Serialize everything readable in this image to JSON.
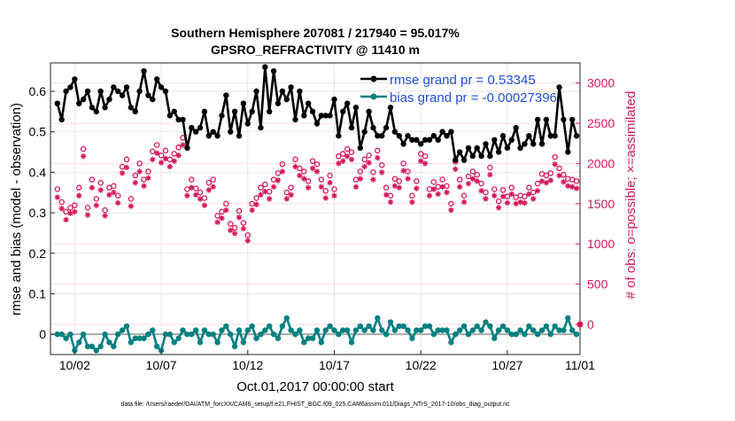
{
  "chart_data": {
    "type": "line",
    "title": "Southern Hemisphere 207081 / 217940 = 95.017%",
    "subtitle": "GPSRO_REFRACTIVITY @ 11410 m",
    "xlabel": "Oct.01,2017 00:00:00 start",
    "ylabel_left": "rmse and bias (model - observation)",
    "ylabel_right": "# of obs: o=possible; ×=assimilated",
    "footer": "data file: /Users/raeder/DAI/ATM_forcXX/CAM6_setup/f.e21.FHIST_BGC.f09_025.CAM6assim.011/Diags_NTrS_2017-10/obs_diag_output.nc",
    "xlim": [
      0.6,
      31.2
    ],
    "ylim_left": [
      -0.05,
      0.67
    ],
    "ylim_right": [
      -375,
      3250
    ],
    "x_ticks": [
      {
        "label": "10/02",
        "value": 2
      },
      {
        "label": "10/07",
        "value": 7
      },
      {
        "label": "10/12",
        "value": 12
      },
      {
        "label": "10/17",
        "value": 17
      },
      {
        "label": "10/22",
        "value": 22
      },
      {
        "label": "10/27",
        "value": 27
      },
      {
        "label": "11/01",
        "value": 32
      }
    ],
    "y_ticks_left": [
      0,
      0.1,
      0.2,
      0.3,
      0.4,
      0.5,
      0.6
    ],
    "y_tick_labels_left": [
      "0",
      "0.1",
      "0.2",
      "0.3",
      "0.4",
      "0.5",
      "0.6"
    ],
    "y_ticks_right": [
      0,
      500,
      1000,
      1500,
      2000,
      2500,
      3000
    ],
    "y_tick_labels_right": [
      "0",
      "500",
      "1000",
      "1500",
      "2000",
      "2500",
      "3000"
    ],
    "grid": true,
    "legend_position": "top-right",
    "colors": {
      "rmse": "#000000",
      "bias": "#008080",
      "obs": "#d6175a",
      "legend_text": "#1f4fe0",
      "zero_line": "#aaaaaa"
    },
    "series": [
      {
        "name": "rmse grand pr = 0.53345",
        "axis": "left",
        "x": [
          1.0,
          1.25,
          1.5,
          1.75,
          2.0,
          2.25,
          2.5,
          2.75,
          3.0,
          3.25,
          3.5,
          3.75,
          4.0,
          4.25,
          4.5,
          4.75,
          5.0,
          5.25,
          5.5,
          5.75,
          6.0,
          6.25,
          6.5,
          6.75,
          7.0,
          7.25,
          7.5,
          7.75,
          8.0,
          8.25,
          8.5,
          8.75,
          9.0,
          9.25,
          9.5,
          9.75,
          10.0,
          10.25,
          10.5,
          10.75,
          11.0,
          11.25,
          11.5,
          11.75,
          12.0,
          12.25,
          12.5,
          12.75,
          13.0,
          13.25,
          13.5,
          13.75,
          14.0,
          14.25,
          14.5,
          14.75,
          15.0,
          15.25,
          15.5,
          15.75,
          16.0,
          16.25,
          16.5,
          16.75,
          17.0,
          17.25,
          17.5,
          17.75,
          18.0,
          18.25,
          18.5,
          18.75,
          19.0,
          19.25,
          19.5,
          19.75,
          20.0,
          20.25,
          20.5,
          20.75,
          21.0,
          21.25,
          21.5,
          21.75,
          22.0,
          22.25,
          22.5,
          22.75,
          23.0,
          23.25,
          23.5,
          23.75,
          24.0,
          24.25,
          24.5,
          24.75,
          25.0,
          25.25,
          25.5,
          25.75,
          26.0,
          26.25,
          26.5,
          26.75,
          27.0,
          27.25,
          27.5,
          27.75,
          28.0,
          28.25,
          28.5,
          28.75,
          29.0,
          29.25,
          29.5,
          29.75,
          30.0,
          30.25,
          30.5,
          30.75,
          31.0
        ],
        "y": [
          0.57,
          0.53,
          0.6,
          0.61,
          0.63,
          0.57,
          0.58,
          0.6,
          0.56,
          0.55,
          0.6,
          0.56,
          0.58,
          0.61,
          0.6,
          0.59,
          0.61,
          0.56,
          0.55,
          0.6,
          0.65,
          0.59,
          0.58,
          0.63,
          0.61,
          0.6,
          0.54,
          0.55,
          0.53,
          0.53,
          0.46,
          0.51,
          0.5,
          0.51,
          0.55,
          0.49,
          0.5,
          0.49,
          0.54,
          0.59,
          0.5,
          0.55,
          0.49,
          0.57,
          0.52,
          0.55,
          0.6,
          0.51,
          0.66,
          0.55,
          0.65,
          0.57,
          0.6,
          0.58,
          0.61,
          0.53,
          0.6,
          0.54,
          0.57,
          0.55,
          0.52,
          0.54,
          0.54,
          0.54,
          0.58,
          0.49,
          0.55,
          0.57,
          0.51,
          0.56,
          0.46,
          0.5,
          0.55,
          0.51,
          0.49,
          0.49,
          0.51,
          0.56,
          0.5,
          0.49,
          0.47,
          0.49,
          0.48,
          0.48,
          0.47,
          0.48,
          0.48,
          0.49,
          0.48,
          0.5,
          0.49,
          0.5,
          0.43,
          0.45,
          0.43,
          0.46,
          0.44,
          0.46,
          0.44,
          0.47,
          0.44,
          0.48,
          0.45,
          0.49,
          0.46,
          0.48,
          0.51,
          0.46,
          0.47,
          0.49,
          0.47,
          0.53,
          0.47,
          0.53,
          0.49,
          0.49,
          0.61,
          0.53,
          0.45,
          0.53,
          0.49
        ]
      },
      {
        "name": "bias grand pr = -0.00027396",
        "axis": "left",
        "x": [
          1.0,
          1.25,
          1.5,
          1.75,
          2.0,
          2.25,
          2.5,
          2.75,
          3.0,
          3.25,
          3.5,
          3.75,
          4.0,
          4.25,
          4.5,
          4.75,
          5.0,
          5.25,
          5.5,
          5.75,
          6.0,
          6.25,
          6.5,
          6.75,
          7.0,
          7.25,
          7.5,
          7.75,
          8.0,
          8.25,
          8.5,
          8.75,
          9.0,
          9.25,
          9.5,
          9.75,
          10.0,
          10.25,
          10.5,
          10.75,
          11.0,
          11.25,
          11.5,
          11.75,
          12.0,
          12.25,
          12.5,
          12.75,
          13.0,
          13.25,
          13.5,
          13.75,
          14.0,
          14.25,
          14.5,
          14.75,
          15.0,
          15.25,
          15.5,
          15.75,
          16.0,
          16.25,
          16.5,
          16.75,
          17.0,
          17.25,
          17.5,
          17.75,
          18.0,
          18.25,
          18.5,
          18.75,
          19.0,
          19.25,
          19.5,
          19.75,
          20.0,
          20.25,
          20.5,
          20.75,
          21.0,
          21.25,
          21.5,
          21.75,
          22.0,
          22.25,
          22.5,
          22.75,
          23.0,
          23.25,
          23.5,
          23.75,
          24.0,
          24.25,
          24.5,
          24.75,
          25.0,
          25.25,
          25.5,
          25.75,
          26.0,
          26.25,
          26.5,
          26.75,
          27.0,
          27.25,
          27.5,
          27.75,
          28.0,
          28.25,
          28.5,
          28.75,
          29.0,
          29.25,
          29.5,
          29.75,
          30.0,
          30.25,
          30.5,
          30.75,
          31.0
        ],
        "y": [
          0.0,
          0.0,
          -0.01,
          0.0,
          -0.04,
          -0.02,
          0.0,
          -0.03,
          -0.03,
          -0.04,
          -0.03,
          0.0,
          -0.02,
          -0.03,
          0.0,
          0.01,
          0.02,
          -0.02,
          -0.01,
          -0.01,
          -0.01,
          0.0,
          0.01,
          -0.03,
          -0.04,
          0.0,
          0.0,
          -0.02,
          -0.01,
          0.01,
          0.0,
          0.0,
          0.01,
          -0.02,
          0.01,
          0.0,
          0.0,
          -0.02,
          0.01,
          0.02,
          0.0,
          -0.03,
          0.01,
          -0.02,
          0.01,
          0.02,
          -0.01,
          0.0,
          0.01,
          0.02,
          0.0,
          -0.01,
          0.02,
          0.04,
          0.01,
          0.0,
          0.01,
          -0.02,
          -0.01,
          -0.01,
          0.01,
          -0.02,
          0.01,
          0.02,
          0.01,
          0.0,
          0.01,
          0.01,
          -0.02,
          0.01,
          0.02,
          0.01,
          0.02,
          0.01,
          0.04,
          0.01,
          0.0,
          0.03,
          0.01,
          0.02,
          0.02,
          0.01,
          -0.01,
          0.01,
          0.01,
          0.02,
          0.02,
          0.0,
          0.01,
          0.01,
          0.01,
          -0.02,
          0.0,
          0.01,
          0.02,
          0.0,
          0.01,
          0.02,
          0.01,
          0.03,
          0.02,
          -0.01,
          0.01,
          0.02,
          0.01,
          0.0,
          0.0,
          0.01,
          0.0,
          0.02,
          0.01,
          0.0,
          0.01,
          0.02,
          0.0,
          0.02,
          0.01,
          0.01,
          0.04,
          0.01,
          0.0
        ]
      },
      {
        "name": "possible",
        "axis": "right",
        "marker": "o",
        "x": [
          1.0,
          1.25,
          1.5,
          1.75,
          2.0,
          2.25,
          2.5,
          2.75,
          3.0,
          3.25,
          3.5,
          3.75,
          4.0,
          4.25,
          4.5,
          4.75,
          5.0,
          5.25,
          5.5,
          5.75,
          6.0,
          6.25,
          6.5,
          6.75,
          7.0,
          7.25,
          7.5,
          7.75,
          8.0,
          8.25,
          8.5,
          8.75,
          9.0,
          9.25,
          9.5,
          9.75,
          10.0,
          10.25,
          10.5,
          10.75,
          11.0,
          11.25,
          11.5,
          11.75,
          12.0,
          12.25,
          12.5,
          12.75,
          13.0,
          13.25,
          13.5,
          13.75,
          14.0,
          14.25,
          14.5,
          14.75,
          15.0,
          15.25,
          15.5,
          15.75,
          16.0,
          16.25,
          16.5,
          16.75,
          17.0,
          17.25,
          17.5,
          17.75,
          18.0,
          18.25,
          18.5,
          18.75,
          19.0,
          19.25,
          19.5,
          19.75,
          20.0,
          20.25,
          20.5,
          20.75,
          21.0,
          21.25,
          21.5,
          21.75,
          22.0,
          22.25,
          22.5,
          22.75,
          23.0,
          23.25,
          23.5,
          23.75,
          24.0,
          24.25,
          24.5,
          24.75,
          25.0,
          25.25,
          25.5,
          25.75,
          26.0,
          26.25,
          26.5,
          26.75,
          27.0,
          27.25,
          27.5,
          27.75,
          28.0,
          28.25,
          28.5,
          28.75,
          29.0,
          29.25,
          29.5,
          29.75,
          30.0,
          30.25,
          30.5,
          30.75,
          31.0
        ],
        "y": [
          1680,
          1520,
          1400,
          1450,
          1480,
          1700,
          2180,
          1450,
          1800,
          1560,
          1760,
          1420,
          1700,
          1720,
          1600,
          1960,
          2050,
          1560,
          1850,
          2000,
          1800,
          1900,
          2150,
          2230,
          2100,
          2160,
          2050,
          2120,
          2200,
          2320,
          1680,
          1800,
          1690,
          1640,
          1570,
          1760,
          1800,
          1350,
          1400,
          1500,
          1250,
          1200,
          1410,
          1260,
          1110,
          1500,
          1570,
          1700,
          1740,
          1650,
          1800,
          1880,
          1990,
          1640,
          1700,
          2050,
          1940,
          1900,
          1780,
          2030,
          1990,
          1800,
          1660,
          1850,
          1680,
          2090,
          2120,
          2180,
          2140,
          1800,
          1900,
          2050,
          2100,
          1890,
          2160,
          1980,
          1700,
          1600,
          1810,
          1780,
          2000,
          1900,
          1600,
          1780,
          2120,
          2090,
          1680,
          1770,
          1710,
          1800,
          1720,
          1500,
          2020,
          1800,
          1600,
          1840,
          1900,
          1860,
          1750,
          1640,
          1950,
          1680,
          1530,
          1670,
          1590,
          1700,
          1580,
          1600,
          1590,
          1700,
          1640,
          1750,
          1870,
          1850,
          1880,
          2080,
          1940,
          1860,
          1810,
          1800,
          1780
        ]
      },
      {
        "name": "assimilated",
        "axis": "right",
        "marker": "*",
        "x": [
          1.0,
          1.25,
          1.5,
          1.75,
          2.0,
          2.25,
          2.5,
          2.75,
          3.0,
          3.25,
          3.5,
          3.75,
          4.0,
          4.25,
          4.5,
          4.75,
          5.0,
          5.25,
          5.5,
          5.75,
          6.0,
          6.25,
          6.5,
          6.75,
          7.0,
          7.25,
          7.5,
          7.75,
          8.0,
          8.25,
          8.5,
          8.75,
          9.0,
          9.25,
          9.5,
          9.75,
          10.0,
          10.25,
          10.5,
          10.75,
          11.0,
          11.25,
          11.5,
          11.75,
          12.0,
          12.25,
          12.5,
          12.75,
          13.0,
          13.25,
          13.5,
          13.75,
          14.0,
          14.25,
          14.5,
          14.75,
          15.0,
          15.25,
          15.5,
          15.75,
          16.0,
          16.25,
          16.5,
          16.75,
          17.0,
          17.25,
          17.5,
          17.75,
          18.0,
          18.25,
          18.5,
          18.75,
          19.0,
          19.25,
          19.5,
          19.75,
          20.0,
          20.25,
          20.5,
          20.75,
          21.0,
          21.25,
          21.5,
          21.75,
          22.0,
          22.25,
          22.5,
          22.75,
          23.0,
          23.25,
          23.5,
          23.75,
          24.0,
          24.25,
          24.5,
          24.75,
          25.0,
          25.25,
          25.5,
          25.75,
          26.0,
          26.25,
          26.5,
          26.75,
          27.0,
          27.25,
          27.5,
          27.75,
          28.0,
          28.25,
          28.5,
          28.75,
          29.0,
          29.25,
          29.5,
          29.75,
          30.0,
          30.25,
          30.5,
          30.75,
          31.0
        ],
        "y": [
          1580,
          1440,
          1300,
          1380,
          1400,
          1600,
          2090,
          1360,
          1700,
          1480,
          1670,
          1350,
          1610,
          1640,
          1510,
          1880,
          1950,
          1470,
          1760,
          1900,
          1720,
          1820,
          2050,
          2130,
          2010,
          2060,
          1960,
          2030,
          2100,
          2230,
          1600,
          1700,
          1610,
          1560,
          1480,
          1670,
          1710,
          1270,
          1320,
          1420,
          1170,
          1130,
          1330,
          1190,
          1040,
          1420,
          1490,
          1610,
          1650,
          1560,
          1710,
          1790,
          1900,
          1560,
          1610,
          1960,
          1850,
          1810,
          1700,
          1940,
          1900,
          1710,
          1570,
          1760,
          1600,
          2000,
          2030,
          2090,
          2050,
          1710,
          1810,
          1960,
          2010,
          1800,
          2070,
          1890,
          1610,
          1520,
          1720,
          1700,
          1910,
          1810,
          1520,
          1690,
          2030,
          2000,
          1600,
          1680,
          1620,
          1710,
          1640,
          1420,
          1930,
          1710,
          1520,
          1750,
          1810,
          1780,
          1660,
          1560,
          1860,
          1600,
          1450,
          1590,
          1510,
          1620,
          1500,
          1520,
          1510,
          1620,
          1560,
          1660,
          1780,
          1760,
          1790,
          1990,
          1850,
          1770,
          1720,
          1710,
          1690
        ]
      }
    ]
  }
}
